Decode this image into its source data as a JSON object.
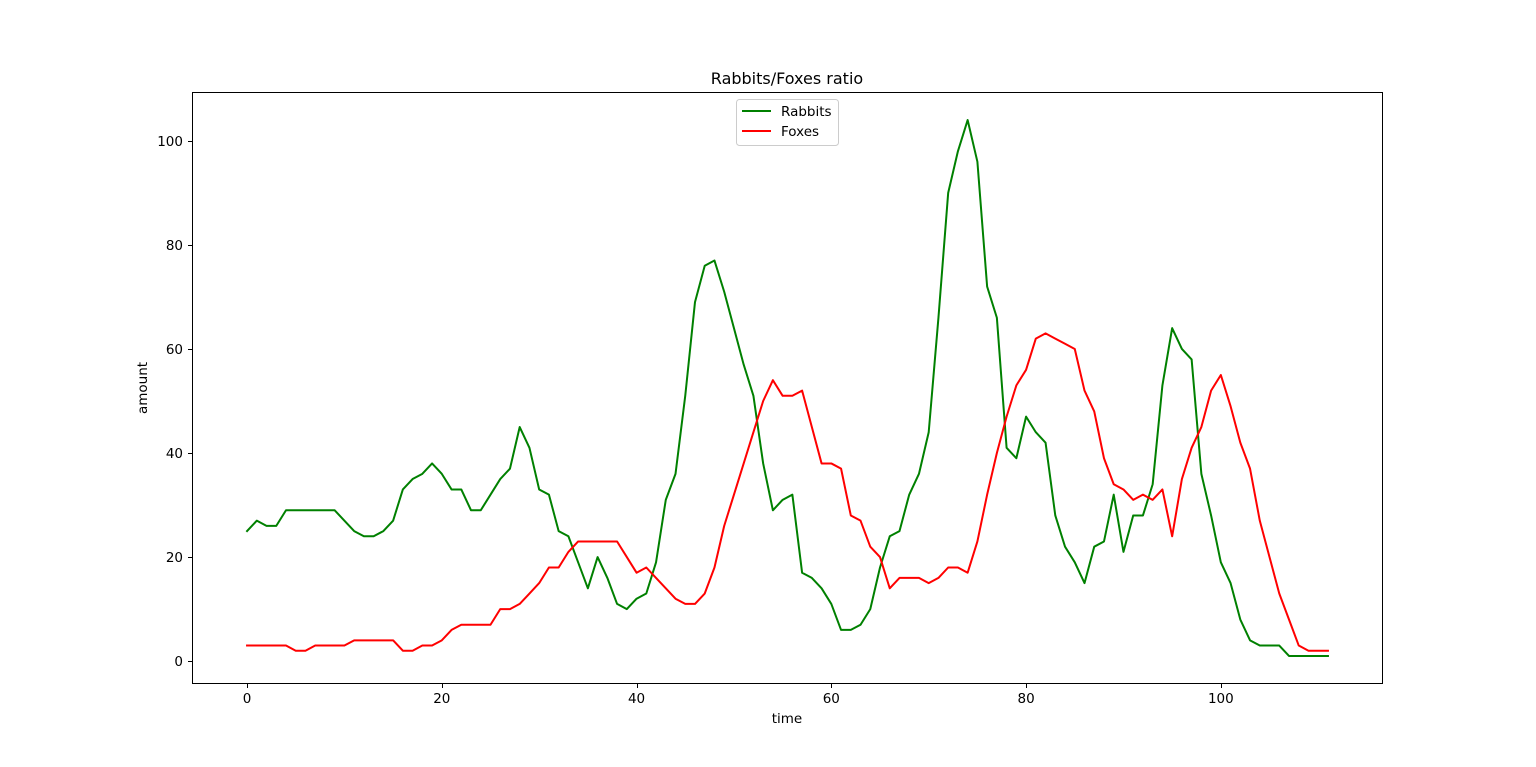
{
  "chart_data": {
    "type": "line",
    "title": "Rabbits/Foxes ratio",
    "xlabel": "time",
    "ylabel": "amount",
    "xlim": [
      -5.55,
      116.55
    ],
    "ylim": [
      -4.2,
      109.2
    ],
    "xticks": [
      0,
      20,
      40,
      60,
      80,
      100
    ],
    "yticks": [
      0,
      20,
      40,
      60,
      80,
      100
    ],
    "grid": false,
    "legend_position": "upper center",
    "series": [
      {
        "name": "Rabbits",
        "color": "#008000",
        "values": [
          25,
          27,
          26,
          26,
          29,
          29,
          29,
          29,
          29,
          29,
          27,
          25,
          24,
          24,
          25,
          27,
          33,
          35,
          36,
          38,
          36,
          33,
          33,
          29,
          29,
          32,
          35,
          37,
          45,
          41,
          33,
          32,
          25,
          24,
          19,
          14,
          20,
          16,
          11,
          10,
          12,
          13,
          19,
          31,
          36,
          51,
          69,
          76,
          77,
          71,
          64,
          57,
          51,
          38,
          29,
          31,
          32,
          17,
          16,
          14,
          11,
          6,
          6,
          7,
          10,
          18,
          24,
          25,
          32,
          36,
          44,
          66,
          90,
          98,
          104,
          96,
          72,
          66,
          41,
          39,
          47,
          44,
          42,
          28,
          22,
          19,
          15,
          22,
          23,
          32,
          21,
          28,
          28,
          34,
          53,
          64,
          60,
          58,
          36,
          28,
          19,
          15,
          8,
          4,
          3,
          3,
          3,
          1,
          1,
          1,
          1,
          1
        ]
      },
      {
        "name": "Foxes",
        "color": "#ff0000",
        "values": [
          3,
          3,
          3,
          3,
          3,
          2,
          2,
          3,
          3,
          3,
          3,
          4,
          4,
          4,
          4,
          4,
          2,
          2,
          3,
          3,
          4,
          6,
          7,
          7,
          7,
          7,
          10,
          10,
          11,
          13,
          15,
          18,
          18,
          21,
          23,
          23,
          23,
          23,
          23,
          20,
          17,
          18,
          16,
          14,
          12,
          11,
          11,
          13,
          18,
          26,
          32,
          38,
          44,
          50,
          54,
          51,
          51,
          52,
          45,
          38,
          38,
          37,
          28,
          27,
          22,
          20,
          14,
          16,
          16,
          16,
          15,
          16,
          18,
          18,
          17,
          23,
          32,
          40,
          47,
          53,
          56,
          62,
          63,
          62,
          61,
          60,
          52,
          48,
          39,
          34,
          33,
          31,
          32,
          31,
          33,
          24,
          35,
          41,
          45,
          52,
          55,
          49,
          42,
          37,
          27,
          20,
          13,
          8,
          3,
          2,
          2,
          2
        ]
      }
    ]
  }
}
